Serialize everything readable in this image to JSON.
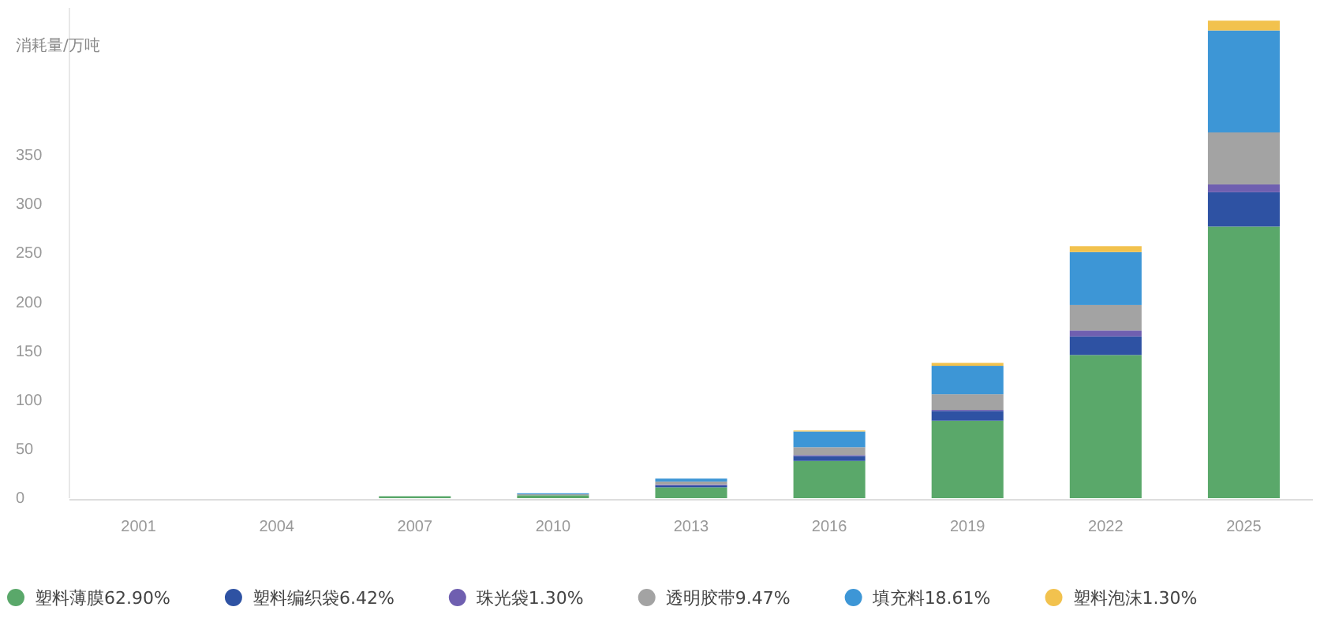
{
  "chart_data": {
    "type": "bar",
    "stacked": true,
    "ylabel": "消耗量/万吨",
    "categories": [
      "2001",
      "2004",
      "2007",
      "2010",
      "2013",
      "2016",
      "2019",
      "2022",
      "2025"
    ],
    "ylim": [
      0,
      500
    ],
    "yticks": [
      0,
      50,
      100,
      150,
      200,
      250,
      300,
      350
    ],
    "grid": false,
    "legend": "bottom",
    "series": [
      {
        "name": "塑料薄膜62.90%",
        "color": "#5aa86a",
        "values": [
          0,
          0,
          2,
          3,
          11,
          38,
          79,
          146,
          277
        ]
      },
      {
        "name": "塑料编织袋6.42%",
        "color": "#2e52a3",
        "values": [
          0,
          0,
          0,
          0,
          2,
          5,
          10,
          19,
          35
        ]
      },
      {
        "name": "珠光袋1.30%",
        "color": "#6f5fb0",
        "values": [
          0,
          0,
          0,
          0,
          1,
          1,
          1,
          6,
          8
        ]
      },
      {
        "name": "透明胶带9.47%",
        "color": "#a3a3a3",
        "values": [
          0,
          0,
          0,
          1,
          3,
          8,
          16,
          26,
          53
        ]
      },
      {
        "name": "填充料18.61%",
        "color": "#3d96d6",
        "values": [
          0,
          0,
          0,
          1,
          3,
          16,
          29,
          54,
          104
        ]
      },
      {
        "name": "塑料泡沫1.30%",
        "color": "#f2c24e",
        "values": [
          0,
          0,
          0,
          0,
          0,
          1,
          3,
          6,
          10
        ]
      }
    ]
  }
}
